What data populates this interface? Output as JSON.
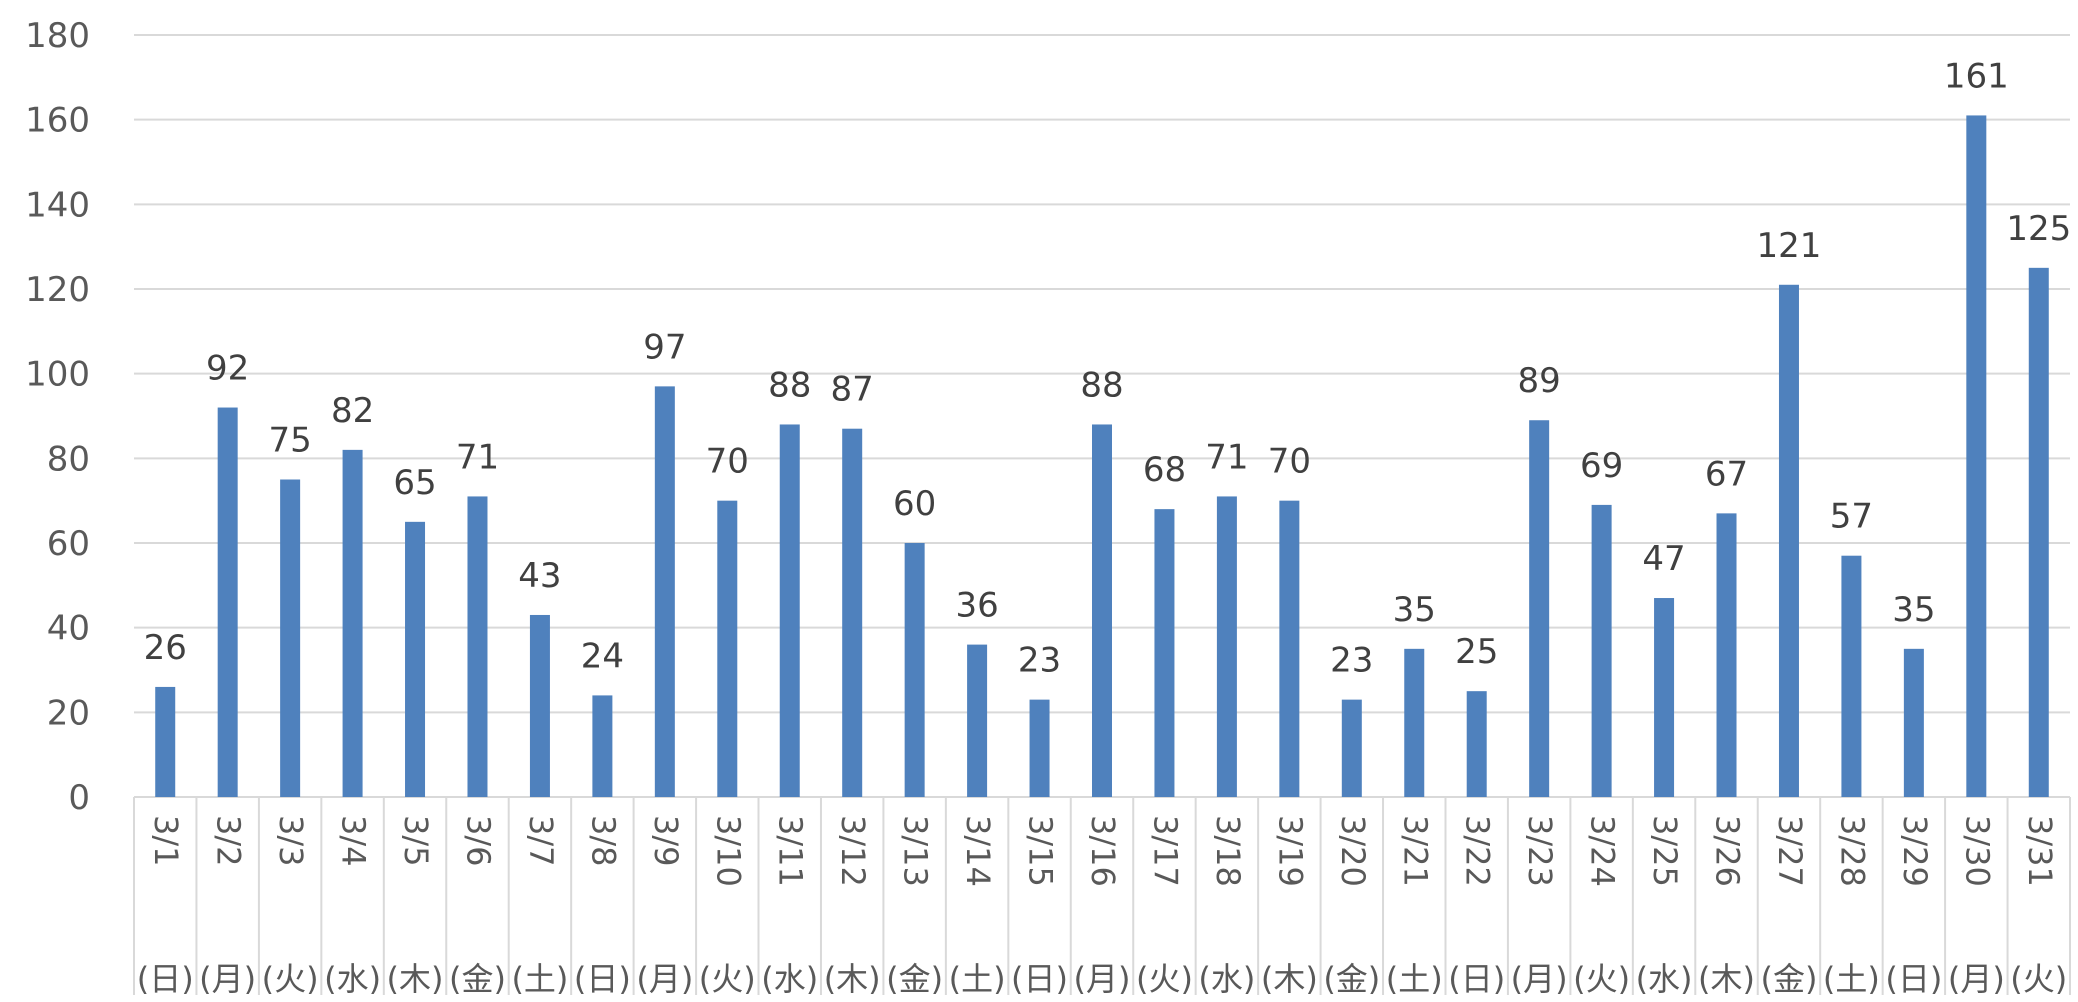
{
  "chart_data": {
    "type": "bar",
    "categories": [
      "3/1",
      "3/2",
      "3/3",
      "3/4",
      "3/5",
      "3/6",
      "3/7",
      "3/8",
      "3/9",
      "3/10",
      "3/11",
      "3/12",
      "3/13",
      "3/14",
      "3/15",
      "3/16",
      "3/17",
      "3/18",
      "3/19",
      "3/20",
      "3/21",
      "3/22",
      "3/23",
      "3/24",
      "3/25",
      "3/26",
      "3/27",
      "3/28",
      "3/29",
      "3/30",
      "3/31"
    ],
    "weekdays": [
      "(日)",
      "(月)",
      "(火)",
      "(水)",
      "(木)",
      "(金)",
      "(土)",
      "(日)",
      "(月)",
      "(火)",
      "(水)",
      "(木)",
      "(金)",
      "(土)",
      "(日)",
      "(月)",
      "(火)",
      "(水)",
      "(木)",
      "(金)",
      "(土)",
      "(日)",
      "(月)",
      "(火)",
      "(水)",
      "(木)",
      "(金)",
      "(土)",
      "(日)",
      "(月)",
      "(火)"
    ],
    "values": [
      26,
      92,
      75,
      82,
      65,
      71,
      43,
      24,
      97,
      70,
      88,
      87,
      60,
      36,
      23,
      88,
      68,
      71,
      70,
      23,
      35,
      25,
      89,
      69,
      47,
      67,
      121,
      57,
      35,
      161,
      125
    ],
    "yticks": [
      0,
      20,
      40,
      60,
      80,
      100,
      120,
      140,
      160,
      180
    ],
    "ylim": [
      0,
      180
    ],
    "title": "",
    "xlabel": "",
    "ylabel": "",
    "grid": true,
    "bar_color": "#4F81BD",
    "grid_color": "#D9D9D9"
  }
}
